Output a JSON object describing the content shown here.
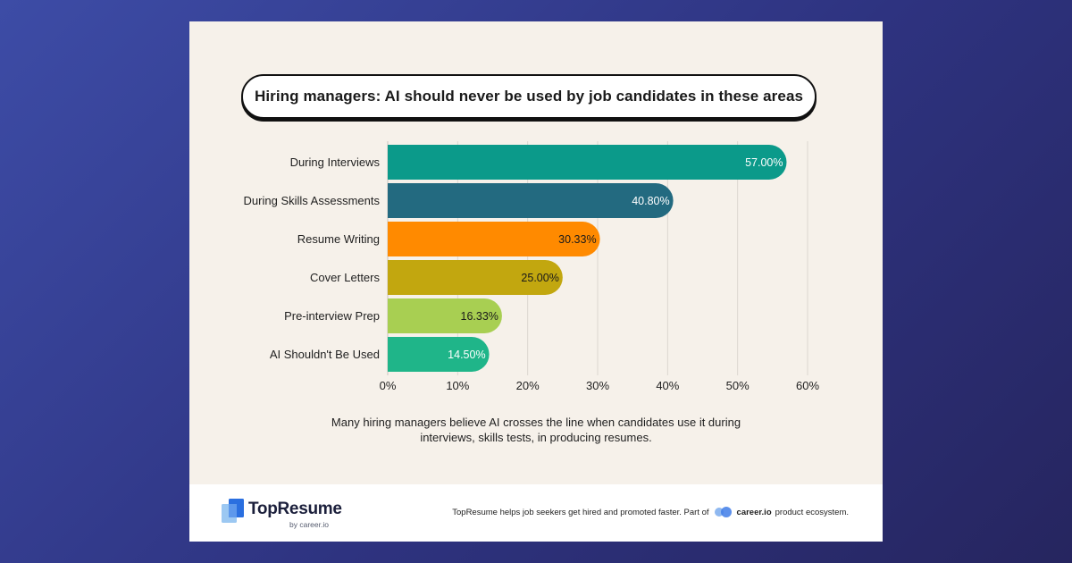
{
  "chart_data": {
    "type": "bar",
    "orientation": "horizontal",
    "title": "Hiring managers: AI should never be used by job candidates in these areas",
    "categories": [
      "During Interviews",
      "During Skills Assessments",
      "Resume Writing",
      "Cover Letters",
      "Pre-interview Prep",
      "AI Shouldn't Be Used"
    ],
    "values": [
      57.0,
      40.8,
      30.33,
      25.0,
      16.33,
      14.5
    ],
    "value_labels": [
      "57.00%",
      "40.80%",
      "30.33%",
      "25.00%",
      "16.33%",
      "14.50%"
    ],
    "colors": [
      "#0b9a8a",
      "#236a80",
      "#ff8a00",
      "#c2a70f",
      "#a8cf52",
      "#1fb589"
    ],
    "label_colors": [
      "#ffffff",
      "#ffffff",
      "#1a1a1a",
      "#1a1a1a",
      "#1a1a1a",
      "#ffffff"
    ],
    "xlim": [
      0,
      60
    ],
    "x_ticks": [
      "0%",
      "10%",
      "20%",
      "30%",
      "40%",
      "50%",
      "60%"
    ],
    "x_tick_values": [
      0,
      10,
      20,
      30,
      40,
      50,
      60
    ],
    "grid": true,
    "xlabel": "",
    "ylabel": ""
  },
  "note": "Many hiring managers believe AI crosses the line when candidates use it during interviews, skills tests, in producing resumes.",
  "footer": {
    "brand": "TopResume",
    "brand_sub": "by career.io",
    "tagline_before": "TopResume helps job seekers get hired and promoted faster. Part of",
    "partner": "career.io",
    "tagline_after": "product ecosystem."
  }
}
